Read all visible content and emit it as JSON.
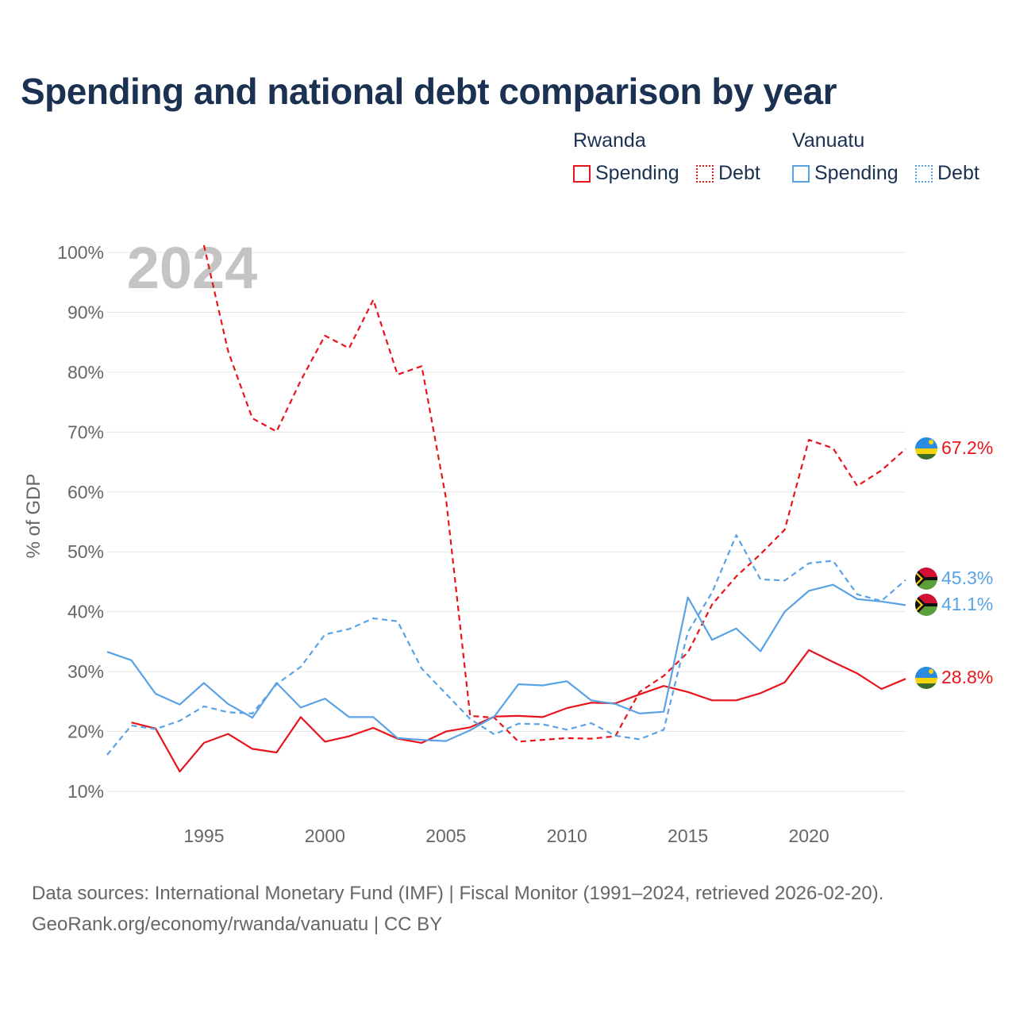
{
  "title": "Spending and national debt comparison by year",
  "legend": {
    "groups": [
      {
        "country": "Rwanda",
        "items": [
          "Spending",
          "Debt"
        ]
      },
      {
        "country": "Vanuatu",
        "items": [
          "Spending",
          "Debt"
        ]
      }
    ]
  },
  "year_watermark": "2024",
  "sources": {
    "line1": "Data sources: International Monetary Fund (IMF) | Fiscal Monitor (1991–2024, retrieved 2026-02-20).",
    "line2": "GeoRank.org/economy/rwanda/vanuatu | CC BY"
  },
  "colors": {
    "rwanda": "#e8141b",
    "vanuatu": "#5aa2e6",
    "title": "#1b3152",
    "axis_text": "#666666",
    "grid": "#e6e6e6"
  },
  "chart_data": {
    "type": "line",
    "ylabel": "% of GDP",
    "xlabel": "",
    "ylim": [
      10,
      100
    ],
    "xlim": [
      1991,
      2024
    ],
    "yticks": [
      10,
      20,
      30,
      40,
      50,
      60,
      70,
      80,
      90,
      100
    ],
    "yticklabels": [
      "10%",
      "20%",
      "30%",
      "40%",
      "50%",
      "60%",
      "70%",
      "80%",
      "90%",
      "100%"
    ],
    "xticks": [
      1995,
      2000,
      2005,
      2010,
      2015,
      2020
    ],
    "xticklabels": [
      "1995",
      "2000",
      "2005",
      "2010",
      "2015",
      "2020"
    ],
    "grid": true,
    "series": [
      {
        "name": "Rwanda Spending",
        "country": "rwanda",
        "style": "solid",
        "x": [
          1992,
          1993,
          1994,
          1995,
          1996,
          1997,
          1998,
          1999,
          2000,
          2001,
          2002,
          2003,
          2004,
          2005,
          2006,
          2007,
          2008,
          2009,
          2010,
          2011,
          2012,
          2013,
          2014,
          2015,
          2016,
          2017,
          2018,
          2019,
          2020,
          2021,
          2022,
          2023,
          2024
        ],
        "values": [
          21.5,
          20.5,
          13.3,
          18.1,
          19.6,
          17.1,
          16.5,
          22.4,
          18.3,
          19.2,
          20.6,
          18.8,
          18.1,
          20.0,
          20.7,
          22.5,
          22.6,
          22.4,
          23.9,
          24.8,
          24.7,
          26.2,
          27.6,
          26.6,
          25.2,
          25.2,
          26.4,
          28.2,
          33.6,
          31.6,
          29.7,
          27.1,
          28.8
        ],
        "end_label": "28.8%"
      },
      {
        "name": "Rwanda Debt",
        "country": "rwanda",
        "style": "dashed",
        "x": [
          1995,
          1996,
          1997,
          1998,
          1999,
          2000,
          2001,
          2002,
          2003,
          2004,
          2005,
          2006,
          2007,
          2008,
          2009,
          2010,
          2011,
          2012,
          2013,
          2014,
          2015,
          2016,
          2017,
          2018,
          2019,
          2020,
          2021,
          2022,
          2023,
          2024
        ],
        "values": [
          101.2,
          83.5,
          72.3,
          70.1,
          78.6,
          86.1,
          84.0,
          92.1,
          79.6,
          81.0,
          59.0,
          22.6,
          22.3,
          18.3,
          18.6,
          18.9,
          18.8,
          19.2,
          26.6,
          29.3,
          33.2,
          41.2,
          45.9,
          49.6,
          53.7,
          68.7,
          67.3,
          61.0,
          63.6,
          67.2
        ],
        "end_label": "67.2%"
      },
      {
        "name": "Vanuatu Spending",
        "country": "vanuatu",
        "style": "solid",
        "x": [
          1991,
          1992,
          1993,
          1994,
          1995,
          1996,
          1997,
          1998,
          1999,
          2000,
          2001,
          2002,
          2003,
          2004,
          2005,
          2006,
          2007,
          2008,
          2009,
          2010,
          2011,
          2012,
          2013,
          2014,
          2015,
          2016,
          2017,
          2018,
          2019,
          2020,
          2021,
          2022,
          2023,
          2024
        ],
        "values": [
          33.3,
          31.9,
          26.3,
          24.5,
          28.1,
          24.6,
          22.3,
          28.1,
          24.0,
          25.5,
          22.4,
          22.4,
          18.9,
          18.6,
          18.4,
          20.2,
          22.5,
          27.9,
          27.7,
          28.4,
          25.2,
          24.6,
          23.0,
          23.3,
          42.4,
          35.3,
          37.2,
          33.4,
          40.0,
          43.5,
          44.5,
          42.1,
          41.7,
          41.1
        ],
        "end_label": "41.1%"
      },
      {
        "name": "Vanuatu Debt",
        "country": "vanuatu",
        "style": "dashed",
        "x": [
          1991,
          1992,
          1993,
          1994,
          1995,
          1996,
          1997,
          1998,
          1999,
          2000,
          2001,
          2002,
          2003,
          2004,
          2005,
          2006,
          2007,
          2008,
          2009,
          2010,
          2011,
          2012,
          2013,
          2014,
          2015,
          2016,
          2017,
          2018,
          2019,
          2020,
          2021,
          2022,
          2023,
          2024
        ],
        "values": [
          16.1,
          21.0,
          20.4,
          21.8,
          24.2,
          23.2,
          23.0,
          27.9,
          30.8,
          36.2,
          37.1,
          38.9,
          38.4,
          30.5,
          26.3,
          22.1,
          19.5,
          21.3,
          21.2,
          20.3,
          21.4,
          19.3,
          18.7,
          20.3,
          36.6,
          43.2,
          52.8,
          45.4,
          45.2,
          48.1,
          48.5,
          42.9,
          41.8,
          45.3
        ],
        "end_label": "45.3%"
      }
    ]
  }
}
